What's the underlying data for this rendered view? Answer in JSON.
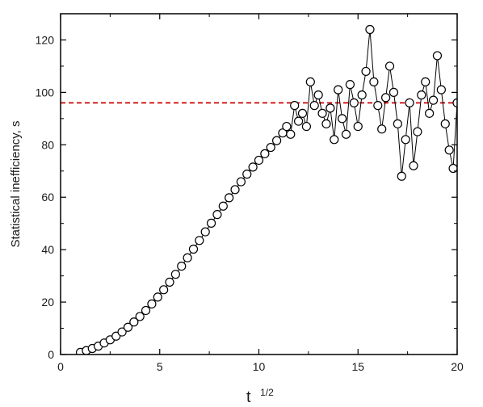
{
  "chart_data": {
    "type": "scatter",
    "title": "",
    "xlabel": "t",
    "xlabel_superscript": "1/2",
    "ylabel": "Statistical inefficiency, s",
    "xlim": [
      0,
      20
    ],
    "ylim": [
      0,
      130
    ],
    "x_ticks": [
      0,
      5,
      10,
      15,
      20
    ],
    "y_ticks": [
      0,
      20,
      40,
      60,
      80,
      100,
      120
    ],
    "x_tick_labels": [
      "0",
      "5",
      "10",
      "15",
      "20"
    ],
    "y_tick_labels": [
      "0",
      "20",
      "40",
      "60",
      "80",
      "100",
      "120"
    ],
    "grid": false,
    "legend": "none",
    "marker": "open-circle",
    "marker_color": "#000000",
    "connect_points": true,
    "reference_line": {
      "y": 96,
      "color": "#cc0000",
      "style": "dashed"
    },
    "series": [
      {
        "points": [
          [
            1.0,
            0.8
          ],
          [
            1.3,
            1.5
          ],
          [
            1.6,
            2.3
          ],
          [
            1.9,
            3.2
          ],
          [
            2.2,
            4.4
          ],
          [
            2.5,
            5.6
          ],
          [
            2.8,
            7.0
          ],
          [
            3.1,
            8.6
          ],
          [
            3.4,
            10.4
          ],
          [
            3.7,
            12.4
          ],
          [
            4.0,
            14.5
          ],
          [
            4.3,
            16.8
          ],
          [
            4.6,
            19.3
          ],
          [
            4.9,
            21.9
          ],
          [
            5.2,
            24.7
          ],
          [
            5.5,
            27.6
          ],
          [
            5.8,
            30.6
          ],
          [
            6.1,
            33.7
          ],
          [
            6.4,
            36.9
          ],
          [
            6.7,
            40.2
          ],
          [
            7.0,
            43.5
          ],
          [
            7.3,
            46.8
          ],
          [
            7.6,
            50.1
          ],
          [
            7.9,
            53.4
          ],
          [
            8.2,
            56.6
          ],
          [
            8.5,
            59.8
          ],
          [
            8.8,
            62.9
          ],
          [
            9.1,
            65.9
          ],
          [
            9.4,
            68.8
          ],
          [
            9.7,
            71.5
          ],
          [
            10.0,
            74.1
          ],
          [
            10.3,
            76.6
          ],
          [
            10.6,
            79.0
          ],
          [
            10.9,
            81.6
          ],
          [
            11.2,
            84.5
          ],
          [
            11.4,
            87.0
          ],
          [
            11.6,
            84.0
          ],
          [
            11.8,
            95.0
          ],
          [
            12.0,
            89.0
          ],
          [
            12.2,
            92.0
          ],
          [
            12.4,
            87.0
          ],
          [
            12.6,
            104.0
          ],
          [
            12.8,
            95.0
          ],
          [
            13.0,
            99.0
          ],
          [
            13.2,
            92.0
          ],
          [
            13.4,
            88.0
          ],
          [
            13.6,
            94.0
          ],
          [
            13.8,
            82.0
          ],
          [
            14.0,
            101.0
          ],
          [
            14.2,
            90.0
          ],
          [
            14.4,
            84.0
          ],
          [
            14.6,
            103.0
          ],
          [
            14.8,
            96.0
          ],
          [
            15.0,
            87.0
          ],
          [
            15.2,
            99.0
          ],
          [
            15.4,
            108.0
          ],
          [
            15.6,
            124.0
          ],
          [
            15.8,
            104.0
          ],
          [
            16.0,
            95.0
          ],
          [
            16.2,
            86.0
          ],
          [
            16.4,
            98.0
          ],
          [
            16.6,
            110.0
          ],
          [
            16.8,
            100.0
          ],
          [
            17.0,
            88.0
          ],
          [
            17.2,
            68.0
          ],
          [
            17.4,
            82.0
          ],
          [
            17.6,
            96.0
          ],
          [
            17.8,
            72.0
          ],
          [
            18.0,
            85.0
          ],
          [
            18.2,
            99.0
          ],
          [
            18.4,
            104.0
          ],
          [
            18.6,
            92.0
          ],
          [
            18.8,
            97.0
          ],
          [
            19.0,
            114.0
          ],
          [
            19.2,
            101.0
          ],
          [
            19.4,
            88.0
          ],
          [
            19.6,
            78.0
          ],
          [
            19.8,
            71.0
          ],
          [
            20.0,
            96.0
          ]
        ]
      }
    ]
  }
}
